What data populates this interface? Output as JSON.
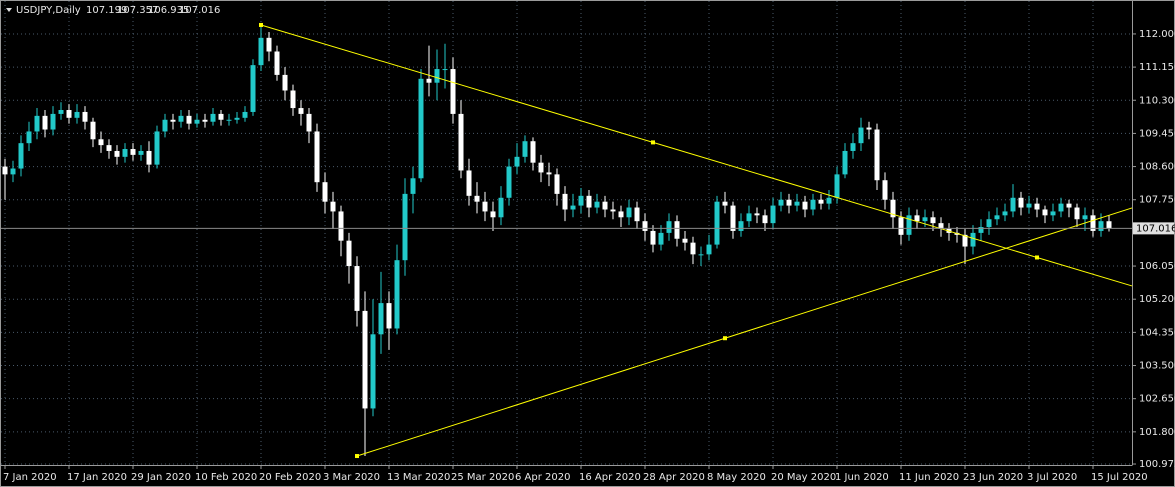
{
  "chart_data": {
    "type": "candlestick",
    "title": "USDJPY,Daily",
    "categories": [
      "7 Jan 2020",
      null,
      null,
      null,
      null,
      null,
      null,
      null,
      "17 Jan 2020",
      null,
      null,
      null,
      null,
      null,
      null,
      null,
      "29 Jan 2020",
      null,
      null,
      null,
      null,
      null,
      null,
      null,
      "10 Feb 2020",
      null,
      null,
      null,
      null,
      null,
      null,
      null,
      "20 Feb 2020",
      null,
      null,
      null,
      null,
      null,
      null,
      null,
      "3 Mar 2020",
      null,
      null,
      null,
      null,
      null,
      null,
      null,
      "13 Mar 2020",
      null,
      null,
      null,
      null,
      null,
      null,
      null,
      "25 Mar 2020",
      null,
      null,
      null,
      null,
      null,
      null,
      null,
      "6 Apr 2020",
      null,
      null,
      null,
      null,
      null,
      null,
      null,
      "16 Apr 2020",
      null,
      null,
      null,
      null,
      null,
      null,
      null,
      "28 Apr 2020",
      null,
      null,
      null,
      null,
      null,
      null,
      null,
      "8 May 2020",
      null,
      null,
      null,
      null,
      null,
      null,
      null,
      "20 May 2020",
      null,
      null,
      null,
      null,
      null,
      null,
      null,
      "1 Jun 2020",
      null,
      null,
      null,
      null,
      null,
      null,
      null,
      "11 Jun 2020",
      null,
      null,
      null,
      null,
      null,
      null,
      null,
      "23 Jun 2020",
      null,
      null,
      null,
      null,
      null,
      null,
      null,
      "3 Jul 2020",
      null,
      null,
      null,
      null,
      null,
      null,
      null,
      "15 Jul 2020",
      null,
      null
    ],
    "open": [
      108.6,
      108.4,
      108.55,
      109.2,
      109.5,
      109.9,
      109.55,
      109.95,
      110.05,
      109.85,
      110.0,
      109.75,
      109.3,
      109.15,
      109.0,
      108.85,
      109.05,
      108.9,
      109.0,
      108.65,
      109.5,
      109.8,
      109.75,
      109.9,
      109.7,
      109.8,
      109.75,
      109.95,
      109.8,
      109.8,
      109.85,
      110.0,
      111.2,
      111.9,
      111.55,
      110.95,
      110.55,
      110.1,
      109.95,
      109.5,
      108.2,
      107.7,
      107.45,
      106.7,
      106.05,
      104.9,
      102.4,
      104.3,
      105.1,
      104.45,
      106.2,
      107.9,
      108.3,
      110.85,
      110.75,
      111.1,
      111.1,
      109.95,
      108.5,
      107.85,
      107.7,
      107.45,
      107.3,
      107.8,
      108.6,
      108.85,
      109.25,
      108.7,
      108.45,
      108.4,
      107.9,
      107.5,
      107.6,
      107.85,
      107.55,
      107.7,
      107.5,
      107.45,
      107.3,
      107.55,
      107.2,
      106.95,
      106.6,
      106.9,
      107.2,
      106.75,
      106.65,
      106.35,
      106.35,
      106.6,
      107.7,
      107.6,
      106.95,
      107.2,
      107.4,
      107.35,
      107.15,
      107.6,
      107.75,
      107.6,
      107.7,
      107.5,
      107.75,
      107.65,
      107.8,
      108.4,
      109.0,
      109.2,
      109.6,
      109.55,
      108.25,
      107.75,
      107.3,
      106.85,
      107.35,
      107.2,
      107.3,
      107.15,
      107.0,
      106.9,
      106.85,
      106.55,
      106.9,
      107.05,
      107.25,
      107.35,
      107.45,
      107.8,
      107.55,
      107.65,
      107.5,
      107.35,
      107.45,
      107.65,
      107.55,
      107.25,
      107.35,
      106.95,
      107.199
    ],
    "high": [
      108.8,
      108.75,
      109.4,
      109.75,
      110.1,
      110.05,
      110.15,
      110.25,
      110.2,
      110.2,
      110.15,
      109.85,
      109.5,
      109.3,
      109.15,
      109.2,
      109.2,
      109.15,
      109.25,
      109.65,
      109.95,
      109.95,
      110.05,
      110.05,
      109.95,
      109.95,
      110.1,
      110.05,
      109.95,
      110.0,
      110.15,
      111.35,
      112.23,
      112.05,
      111.7,
      111.15,
      110.7,
      110.3,
      110.1,
      109.7,
      108.45,
      107.95,
      107.6,
      106.9,
      106.3,
      105.4,
      105.2,
      105.9,
      105.4,
      106.6,
      108.3,
      108.6,
      111.1,
      111.7,
      111.6,
      111.75,
      111.4,
      110.3,
      108.8,
      108.2,
      107.95,
      107.7,
      108.1,
      108.8,
      109.2,
      109.4,
      109.35,
      108.9,
      108.7,
      108.55,
      108.1,
      107.9,
      108.05,
      108.0,
      107.9,
      107.85,
      107.7,
      107.6,
      107.75,
      107.7,
      107.4,
      107.1,
      107.1,
      107.4,
      107.35,
      106.95,
      106.8,
      106.55,
      106.85,
      107.85,
      107.95,
      107.7,
      107.4,
      107.6,
      107.55,
      107.5,
      107.8,
      107.95,
      107.9,
      107.9,
      107.85,
      107.9,
      107.9,
      108.0,
      108.6,
      109.2,
      109.45,
      109.85,
      109.75,
      109.7,
      108.45,
      107.95,
      107.45,
      107.55,
      107.5,
      107.5,
      107.45,
      107.3,
      107.15,
      107.05,
      107.0,
      107.1,
      107.25,
      107.45,
      107.55,
      107.65,
      108.15,
      107.95,
      107.85,
      107.8,
      107.6,
      107.65,
      107.8,
      107.75,
      107.65,
      107.55,
      107.5,
      107.4,
      107.357
    ],
    "low": [
      107.75,
      108.2,
      108.35,
      109.0,
      109.3,
      109.35,
      109.4,
      109.8,
      109.7,
      109.7,
      109.55,
      109.1,
      108.95,
      108.8,
      108.65,
      108.7,
      108.75,
      108.75,
      108.45,
      108.55,
      109.35,
      109.55,
      109.6,
      109.55,
      109.6,
      109.6,
      109.65,
      109.65,
      109.65,
      109.7,
      109.75,
      109.9,
      111.05,
      111.3,
      110.8,
      110.3,
      109.9,
      109.65,
      109.2,
      107.95,
      107.4,
      107.0,
      106.3,
      105.6,
      104.5,
      101.18,
      102.2,
      103.8,
      103.9,
      104.3,
      105.8,
      107.4,
      108.2,
      110.4,
      110.3,
      110.6,
      109.7,
      108.3,
      107.6,
      107.4,
      107.2,
      106.95,
      107.1,
      107.6,
      108.4,
      108.7,
      108.5,
      108.2,
      108.1,
      107.6,
      107.2,
      107.3,
      107.4,
      107.3,
      107.4,
      107.3,
      107.25,
      107.05,
      107.1,
      107.0,
      106.7,
      106.4,
      106.45,
      106.7,
      106.55,
      106.45,
      106.1,
      106.05,
      106.2,
      106.5,
      107.4,
      106.75,
      106.8,
      107.05,
      107.15,
      106.95,
      107.0,
      107.45,
      107.4,
      107.45,
      107.3,
      107.35,
      107.5,
      107.5,
      107.65,
      108.3,
      108.8,
      109.0,
      109.3,
      108.0,
      107.5,
      107.0,
      106.6,
      106.7,
      107.0,
      107.05,
      106.95,
      106.8,
      106.7,
      106.65,
      106.1,
      106.35,
      106.7,
      106.85,
      107.1,
      107.2,
      107.3,
      107.35,
      107.4,
      107.3,
      107.15,
      107.2,
      107.3,
      107.3,
      107.05,
      106.95,
      106.8,
      106.8,
      106.935
    ],
    "close": [
      108.4,
      108.55,
      109.2,
      109.5,
      109.9,
      109.55,
      109.95,
      110.05,
      109.85,
      110.0,
      109.75,
      109.3,
      109.15,
      109.0,
      108.85,
      109.05,
      108.9,
      109.0,
      108.65,
      109.5,
      109.8,
      109.75,
      109.9,
      109.7,
      109.8,
      109.75,
      109.95,
      109.8,
      109.8,
      109.85,
      110.0,
      111.2,
      111.9,
      111.55,
      110.95,
      110.55,
      110.1,
      109.95,
      109.5,
      108.2,
      107.7,
      107.45,
      106.7,
      106.05,
      104.9,
      102.4,
      104.3,
      105.1,
      104.45,
      106.2,
      107.9,
      108.3,
      110.85,
      110.75,
      111.1,
      111.1,
      109.95,
      108.5,
      107.85,
      107.7,
      107.45,
      107.3,
      107.8,
      108.6,
      108.85,
      109.25,
      108.7,
      108.45,
      108.4,
      107.9,
      107.5,
      107.6,
      107.85,
      107.55,
      107.7,
      107.5,
      107.45,
      107.3,
      107.55,
      107.2,
      106.95,
      106.6,
      106.9,
      107.2,
      106.75,
      106.65,
      106.35,
      106.35,
      106.6,
      107.7,
      107.6,
      106.95,
      107.2,
      107.4,
      107.35,
      107.15,
      107.6,
      107.75,
      107.6,
      107.7,
      107.5,
      107.75,
      107.65,
      107.8,
      108.4,
      109.0,
      109.2,
      109.6,
      109.55,
      108.25,
      107.75,
      107.3,
      106.85,
      107.35,
      107.2,
      107.3,
      107.15,
      107.0,
      106.9,
      106.85,
      106.55,
      106.9,
      107.05,
      107.25,
      107.35,
      107.45,
      107.8,
      107.55,
      107.65,
      107.5,
      107.35,
      107.45,
      107.65,
      107.55,
      107.25,
      107.35,
      106.95,
      107.2,
      107.016
    ],
    "up_color": "#22c9c9",
    "down_color": "#ffffff",
    "ylim": [
      100.95,
      112.87
    ],
    "yticks": [
      {
        "value": 112.0,
        "label": "112.000"
      },
      {
        "value": 111.15,
        "label": "111.150"
      },
      {
        "value": 110.3,
        "label": "110.300"
      },
      {
        "value": 109.45,
        "label": "109.450"
      },
      {
        "value": 108.6,
        "label": "108.600"
      },
      {
        "value": 107.75,
        "label": "107.750"
      },
      {
        "value": 106.05,
        "label": "106.050"
      },
      {
        "value": 105.2,
        "label": "105.200"
      },
      {
        "value": 104.35,
        "label": "104.350"
      },
      {
        "value": 103.5,
        "label": "103.500"
      },
      {
        "value": 102.65,
        "label": "102.650"
      },
      {
        "value": 101.8,
        "label": "101.800"
      },
      {
        "value": 100.975,
        "label": "100.975"
      }
    ],
    "grid": true,
    "trendlines": [
      {
        "color": "#ffff00",
        "points": [
          {
            "x": 32,
            "y": 112.23
          },
          {
            "x": 81,
            "y": 109.22
          },
          {
            "x": 129,
            "y": 106.27
          }
        ]
      },
      {
        "color": "#ffff00",
        "points": [
          {
            "x": 44,
            "y": 101.18
          },
          {
            "x": 90,
            "y": 104.2
          }
        ]
      }
    ]
  }
}
